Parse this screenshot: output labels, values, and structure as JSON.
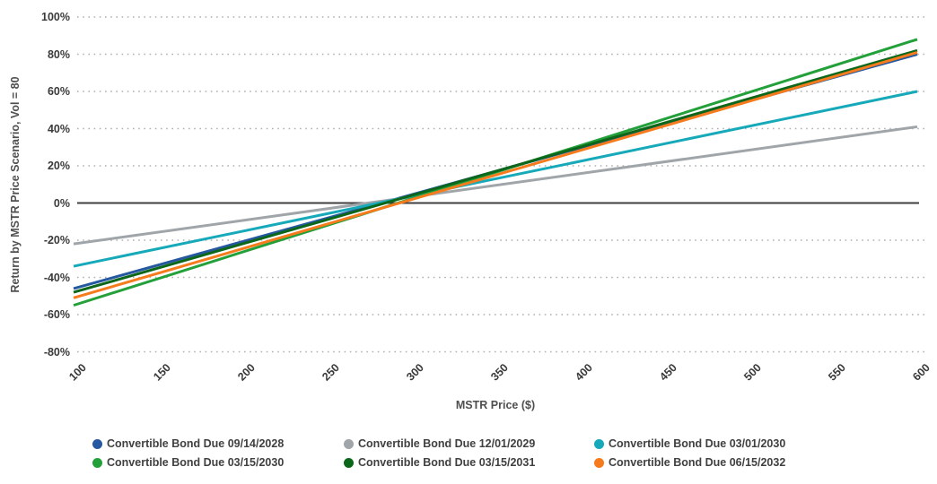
{
  "chart_data": {
    "type": "line",
    "title": "",
    "xlabel": "MSTR Price ($)",
    "ylabel": "Return by MSTR Price Scenario, Vol = 80",
    "xlim": [
      100,
      600
    ],
    "ylim": [
      -80,
      100
    ],
    "grid": "horizontal dotted gridlines, solid line at 0%",
    "legend_position": "bottom, 2 rows x 3 columns",
    "x_tick_values": [
      100,
      150,
      200,
      250,
      300,
      350,
      400,
      450,
      500,
      550,
      600
    ],
    "x_tick_labels": [
      "100",
      "150",
      "200",
      "250",
      "300",
      "350",
      "400",
      "450",
      "500",
      "550",
      "600"
    ],
    "y_tick_values": [
      100,
      80,
      60,
      40,
      20,
      0,
      -20,
      -40,
      -60,
      -80
    ],
    "y_tick_labels": [
      "100%",
      "80%",
      "60%",
      "40%",
      "20%",
      "0%",
      "-20%",
      "-40%",
      "-60%",
      "-80%"
    ],
    "series": [
      {
        "name": "Convertible Bond Due 09/14/2028",
        "color": "#2558a0",
        "x": [
          100,
          600
        ],
        "values": [
          -46,
          80
        ]
      },
      {
        "name": "Convertible Bond Due 12/01/2029",
        "color": "#9fa5a9",
        "x": [
          100,
          600
        ],
        "values": [
          -22,
          41
        ]
      },
      {
        "name": "Convertible Bond Due 03/01/2030",
        "color": "#16a9ba",
        "x": [
          100,
          600
        ],
        "values": [
          -34,
          60
        ]
      },
      {
        "name": "Convertible Bond Due 03/15/2030",
        "color": "#23a03a",
        "x": [
          100,
          600
        ],
        "values": [
          -55,
          88
        ]
      },
      {
        "name": "Convertible Bond Due 03/15/2031",
        "color": "#0c671a",
        "x": [
          100,
          600
        ],
        "values": [
          -48,
          82
        ]
      },
      {
        "name": "Convertible Bond Due 06/15/2032",
        "color": "#f67b1d",
        "x": [
          100,
          600
        ],
        "values": [
          -51,
          81
        ]
      }
    ],
    "grid_color": "#b0b0b0",
    "zero_line_color": "#3f3f3f"
  }
}
